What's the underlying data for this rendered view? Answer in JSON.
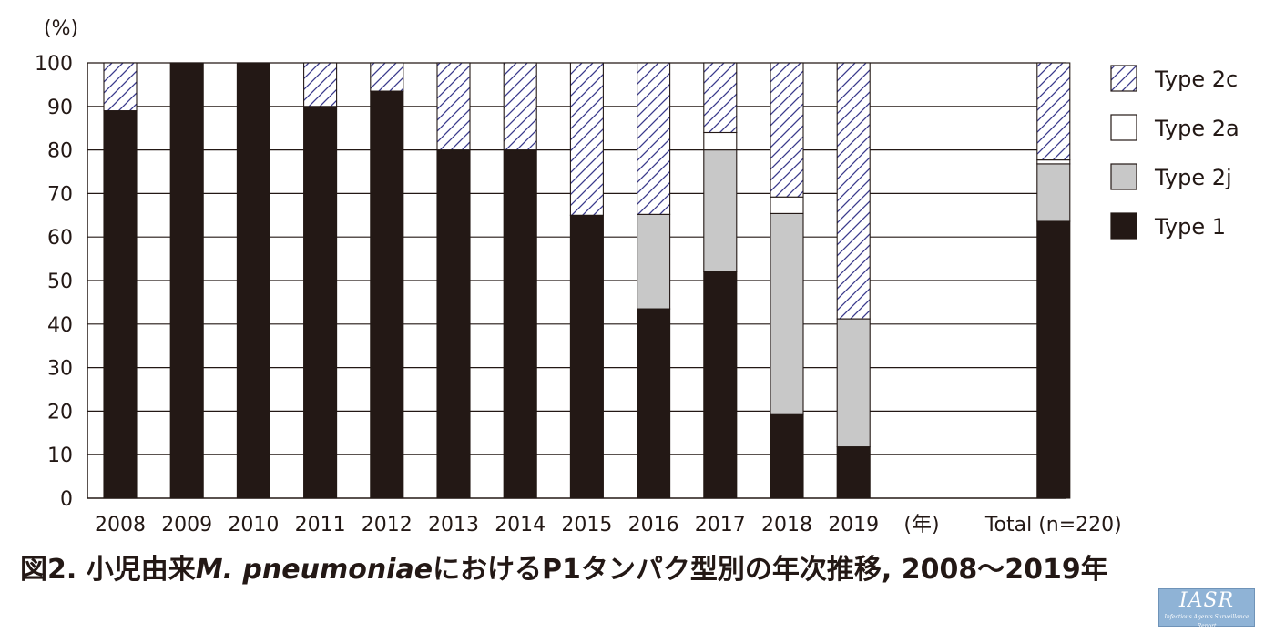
{
  "chart_data": {
    "type": "bar",
    "stacked": true,
    "ylabel": "(%)",
    "xunit": "(年)",
    "ylim": [
      0,
      100
    ],
    "yticks": [
      0,
      10,
      20,
      30,
      40,
      50,
      60,
      70,
      80,
      90,
      100
    ],
    "grid": true,
    "legend_position": "right",
    "categories": [
      "2008",
      "2009",
      "2010",
      "2011",
      "2012",
      "2013",
      "2014",
      "2015",
      "2016",
      "2017",
      "2018",
      "2019",
      "Total (n=220)"
    ],
    "gap_after_index": 11,
    "series": [
      {
        "name": "Type 1",
        "color": "#231815",
        "pattern": "solid",
        "values": [
          89,
          100,
          100,
          90,
          93.5,
          80,
          80,
          65,
          43.5,
          52,
          19.2,
          11.8,
          63.6
        ]
      },
      {
        "name": "Type 2j",
        "color": "#c8c8c8",
        "pattern": "solid",
        "values": [
          0,
          0,
          0,
          0,
          0,
          0,
          0,
          0,
          21.7,
          28,
          46.2,
          29.4,
          13.2
        ]
      },
      {
        "name": "Type 2a",
        "color": "#ffffff",
        "pattern": "solid",
        "values": [
          0,
          0,
          0,
          0,
          0,
          0,
          0,
          0,
          0,
          4,
          3.8,
          0,
          0.9
        ]
      },
      {
        "name": "Type 2c",
        "color": "#3a3a8c",
        "pattern": "hatched",
        "values": [
          11,
          0,
          0,
          10,
          6.5,
          20,
          20,
          35,
          34.8,
          16,
          30.8,
          58.8,
          22.3
        ]
      }
    ],
    "legend_order": [
      "Type 2c",
      "Type 2a",
      "Type 2j",
      "Type 1"
    ]
  },
  "caption": {
    "prefix": "図2. 小児由来",
    "species": "M. pneumoniae",
    "suffix": "におけるP1タンパク型別の年次推移, 2008〜2019年"
  },
  "logo": {
    "main": "IASR",
    "sub": "Infectious Agents Surveillance Report"
  }
}
